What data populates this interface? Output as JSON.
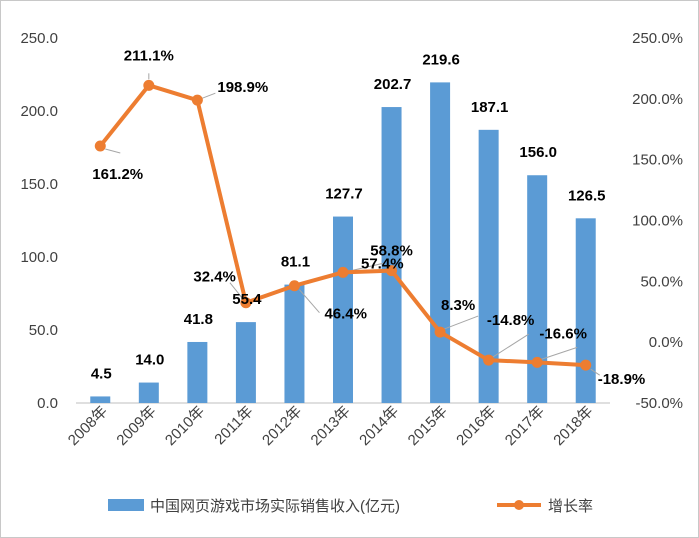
{
  "chart_data": {
    "type": "bar+line",
    "categories": [
      "2008年",
      "2009年",
      "2010年",
      "2011年",
      "2012年",
      "2013年",
      "2014年",
      "2015年",
      "2016年",
      "2017年",
      "2018年"
    ],
    "series": [
      {
        "name": "中国网页游戏市场实际销售收入(亿元)",
        "type": "bar",
        "axis": "left",
        "color": "#5b9bd5",
        "values": [
          4.5,
          14.0,
          41.8,
          55.4,
          81.1,
          127.7,
          202.7,
          219.6,
          187.1,
          156.0,
          126.5
        ],
        "labels": [
          "4.5",
          "14.0",
          "41.8",
          "55.4",
          "81.1",
          "127.7",
          "202.7",
          "219.6",
          "187.1",
          "156.0",
          "126.5"
        ]
      },
      {
        "name": "增长率",
        "type": "line",
        "axis": "right",
        "color": "#ed7d31",
        "values": [
          161.2,
          211.1,
          198.9,
          32.4,
          46.4,
          57.4,
          58.8,
          8.3,
          -14.8,
          -16.6,
          -18.9
        ],
        "labels": [
          "161.2%",
          "211.1%",
          "198.9%",
          "32.4%",
          "46.4%",
          "57.4%",
          "58.8%",
          "8.3%",
          "-14.8%",
          "-16.6%",
          "-18.9%"
        ]
      }
    ],
    "y_left": {
      "min": 0,
      "max": 250,
      "ticks": [
        "0.0",
        "50.0",
        "100.0",
        "150.0",
        "200.0",
        "250.0"
      ]
    },
    "y_right": {
      "min": -50,
      "max": 250,
      "ticks": [
        "-50.0%",
        "0.0%",
        "50.0%",
        "100.0%",
        "150.0%",
        "200.0%",
        "250.0%"
      ]
    },
    "grid": false,
    "legend_position": "bottom"
  }
}
